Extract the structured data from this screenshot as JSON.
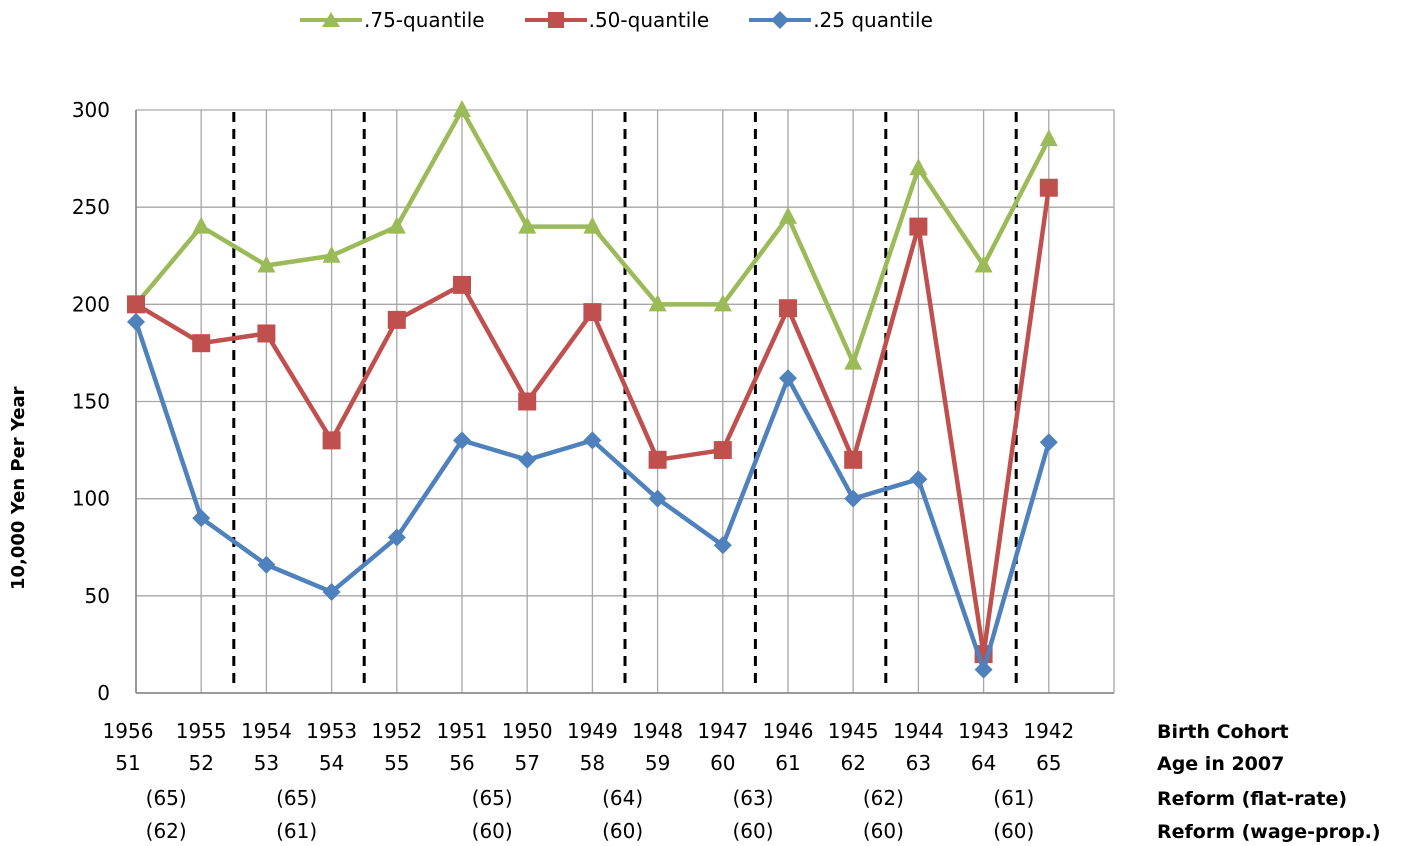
{
  "chart_data": {
    "type": "line",
    "ylabel": "10,000 Yen Per Year",
    "ylim": [
      0,
      300
    ],
    "yticks": [
      0,
      50,
      100,
      150,
      200,
      250,
      300
    ],
    "grid": true,
    "legend_position": "top",
    "categories": [
      "1956",
      "1955",
      "1954",
      "1953",
      "1952",
      "1951",
      "1950",
      "1949",
      "1948",
      "1947",
      "1946",
      "1945",
      "1944",
      "1943",
      "1942"
    ],
    "rows": [
      {
        "label": "Birth Cohort",
        "values": [
          "1956",
          "1955",
          "1954",
          "1953",
          "1952",
          "1951",
          "1950",
          "1949",
          "1948",
          "1947",
          "1946",
          "1945",
          "1944",
          "1943",
          "1942"
        ]
      },
      {
        "label": "Age in 2007",
        "values": [
          "51",
          "52",
          "53",
          "54",
          "55",
          "56",
          "57",
          "58",
          "59",
          "60",
          "61",
          "62",
          "63",
          "64",
          "65"
        ]
      },
      {
        "label": "Reform (flat-rate)",
        "values": [
          "(65)",
          "(65)",
          "(65)",
          "(64)",
          "(63)",
          "(62)",
          "(61)"
        ]
      },
      {
        "label": "Reform (wage-prop.)",
        "values": [
          "(62)",
          "(61)",
          "(60)",
          "(60)",
          "(60)",
          "(60)",
          "(60)"
        ]
      }
    ],
    "reform_label_positions": [
      1,
      3,
      6,
      8,
      10,
      12,
      14
    ],
    "reform_boundaries": [
      1.5,
      3.5,
      7.5,
      9.5,
      11.5,
      13.5
    ],
    "series": [
      {
        "name": ".75-quantile",
        "color": "#9bbb59",
        "marker": "triangle",
        "values": [
          200,
          240,
          220,
          225,
          240,
          300,
          240,
          240,
          200,
          200,
          245,
          170,
          270,
          220,
          285
        ]
      },
      {
        "name": ".50-quantile",
        "color": "#c0504d",
        "marker": "square",
        "values": [
          200,
          180,
          185,
          130,
          192,
          210,
          150,
          196,
          120,
          125,
          198,
          120,
          240,
          20,
          260
        ]
      },
      {
        "name": ".25 quantile",
        "color": "#4f81bd",
        "marker": "diamond",
        "values": [
          191,
          90,
          66,
          52,
          80,
          130,
          120,
          130,
          100,
          76,
          162,
          100,
          110,
          12,
          129
        ]
      }
    ]
  }
}
